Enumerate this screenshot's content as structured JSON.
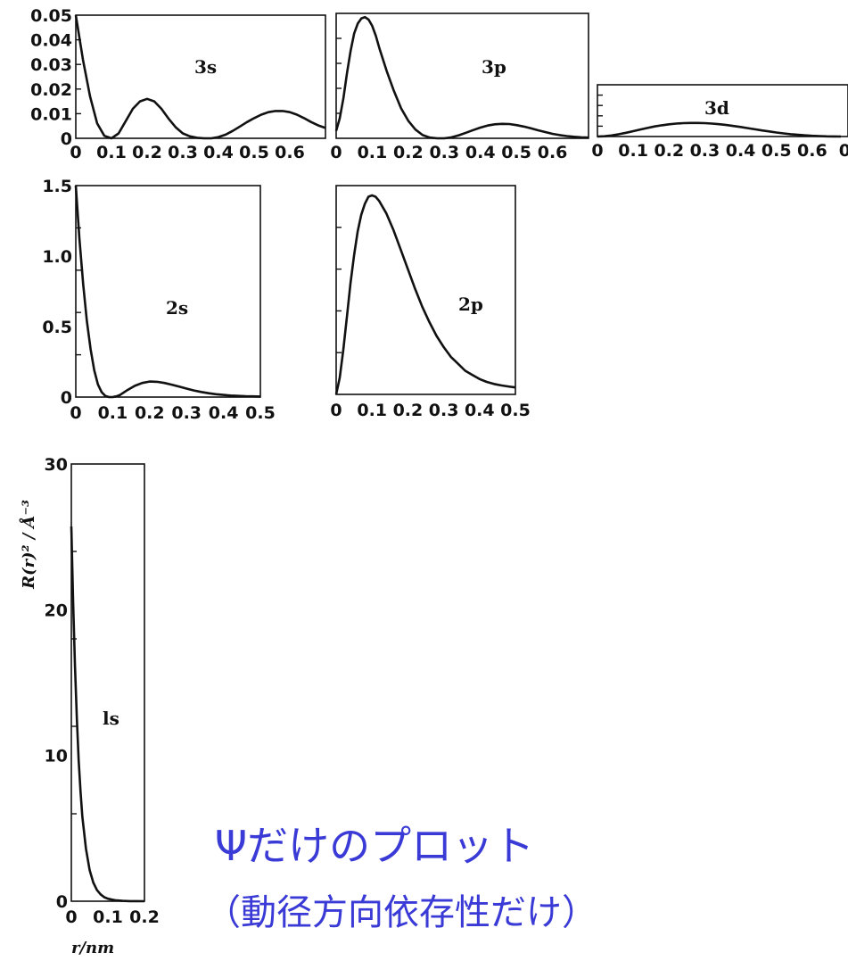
{
  "caption": {
    "main": "Ψだけのプロット",
    "sub": "（動径方向依存性だけ）"
  },
  "axis_titles": {
    "y": "R(r)² / Å⁻³",
    "x": "r/nm"
  },
  "colors": {
    "curve": "#111111",
    "caption": "#3a3ad6"
  },
  "chart_data": [
    {
      "id": "3s",
      "type": "line",
      "label": "3s",
      "xlim": [
        0,
        0.7
      ],
      "ylim": [
        0,
        0.05
      ],
      "xticks": [
        "0",
        "0.1",
        "0.2",
        "0.3",
        "0.4",
        "0.5",
        "0.6"
      ],
      "yticks": [
        "0",
        "0.01",
        "0.02",
        "0.03",
        "0.04",
        "0.05"
      ],
      "x": [
        0,
        0.02,
        0.04,
        0.06,
        0.08,
        0.1,
        0.12,
        0.14,
        0.16,
        0.18,
        0.2,
        0.22,
        0.24,
        0.26,
        0.28,
        0.3,
        0.32,
        0.34,
        0.36,
        0.38,
        0.4,
        0.42,
        0.44,
        0.46,
        0.48,
        0.5,
        0.52,
        0.54,
        0.56,
        0.58,
        0.6,
        0.62,
        0.64,
        0.66,
        0.68,
        0.7
      ],
      "y": [
        0.05,
        0.032,
        0.017,
        0.006,
        0.001,
        0.0,
        0.002,
        0.007,
        0.012,
        0.015,
        0.016,
        0.015,
        0.012,
        0.008,
        0.0045,
        0.002,
        0.0008,
        0.0002,
        0.0,
        0.0,
        0.0005,
        0.0015,
        0.003,
        0.0048,
        0.0066,
        0.0082,
        0.0096,
        0.0106,
        0.0111,
        0.0111,
        0.0106,
        0.0096,
        0.0082,
        0.0066,
        0.0052,
        0.0042
      ]
    },
    {
      "id": "3p",
      "type": "line",
      "label": "3p",
      "xlim": [
        0,
        0.7
      ],
      "ylim": [
        0,
        0.05
      ],
      "xticks": [
        "0",
        "0.1",
        "0.2",
        "0.3",
        "0.4",
        "0.5",
        "0.6"
      ],
      "yticks": [],
      "x": [
        0,
        0.01,
        0.02,
        0.03,
        0.04,
        0.05,
        0.06,
        0.07,
        0.08,
        0.09,
        0.1,
        0.11,
        0.12,
        0.14,
        0.16,
        0.18,
        0.2,
        0.22,
        0.24,
        0.26,
        0.28,
        0.3,
        0.32,
        0.34,
        0.36,
        0.38,
        0.4,
        0.42,
        0.44,
        0.46,
        0.48,
        0.5,
        0.52,
        0.54,
        0.56,
        0.58,
        0.6,
        0.62,
        0.64,
        0.66,
        0.68,
        0.7
      ],
      "y": [
        0.003,
        0.008,
        0.016,
        0.026,
        0.035,
        0.042,
        0.046,
        0.048,
        0.0485,
        0.0475,
        0.045,
        0.041,
        0.036,
        0.027,
        0.019,
        0.012,
        0.007,
        0.0035,
        0.0013,
        0.0003,
        0.0,
        0.0,
        0.0004,
        0.0012,
        0.0022,
        0.0033,
        0.0043,
        0.0051,
        0.0056,
        0.0058,
        0.0057,
        0.0053,
        0.0047,
        0.004,
        0.0032,
        0.0025,
        0.0018,
        0.0013,
        0.0009,
        0.0006,
        0.0004,
        0.0003
      ]
    },
    {
      "id": "3d",
      "type": "line",
      "label": "3d",
      "xlim": [
        0,
        0.7
      ],
      "ylim": [
        0,
        0.05
      ],
      "xticks": [
        "0",
        "0.1",
        "0.2",
        "0.3",
        "0.4",
        "0.5",
        "0.6",
        "0."
      ],
      "yticks": [],
      "x": [
        0,
        0.02,
        0.04,
        0.06,
        0.08,
        0.1,
        0.12,
        0.14,
        0.16,
        0.18,
        0.2,
        0.22,
        0.24,
        0.26,
        0.28,
        0.3,
        0.32,
        0.34,
        0.36,
        0.38,
        0.4,
        0.42,
        0.44,
        0.46,
        0.48,
        0.5,
        0.52,
        0.54,
        0.56,
        0.58,
        0.6,
        0.62,
        0.64,
        0.66,
        0.68
      ],
      "y": [
        0.0,
        0.0003,
        0.001,
        0.0022,
        0.0036,
        0.0052,
        0.0068,
        0.0083,
        0.0097,
        0.0109,
        0.0118,
        0.0125,
        0.0129,
        0.0131,
        0.0131,
        0.0129,
        0.0125,
        0.0119,
        0.0111,
        0.0102,
        0.0092,
        0.0081,
        0.007,
        0.0059,
        0.0049,
        0.0039,
        0.003,
        0.0022,
        0.0016,
        0.0011,
        0.0007,
        0.0004,
        0.0002,
        0.0001,
        0.0
      ]
    },
    {
      "id": "2s",
      "type": "line",
      "label": "2s",
      "xlim": [
        0,
        0.5
      ],
      "ylim": [
        0,
        1.5
      ],
      "xticks": [
        "0",
        "0.1",
        "0.2",
        "0.3",
        "0.4",
        "0.5"
      ],
      "yticks": [
        "0",
        "0.5",
        "1.0",
        "1.5"
      ],
      "x": [
        0,
        0.01,
        0.02,
        0.03,
        0.04,
        0.05,
        0.06,
        0.07,
        0.08,
        0.09,
        0.1,
        0.11,
        0.12,
        0.14,
        0.16,
        0.18,
        0.2,
        0.22,
        0.24,
        0.26,
        0.28,
        0.3,
        0.32,
        0.34,
        0.36,
        0.38,
        0.4,
        0.42,
        0.44,
        0.46,
        0.48,
        0.5
      ],
      "y": [
        1.5,
        1.12,
        0.8,
        0.54,
        0.34,
        0.19,
        0.09,
        0.035,
        0.008,
        0.0,
        0.0,
        0.005,
        0.015,
        0.05,
        0.08,
        0.1,
        0.11,
        0.108,
        0.1,
        0.088,
        0.074,
        0.06,
        0.047,
        0.036,
        0.027,
        0.02,
        0.015,
        0.011,
        0.008,
        0.006,
        0.005,
        0.004
      ]
    },
    {
      "id": "2p",
      "type": "line",
      "label": "2p",
      "xlim": [
        0,
        0.5
      ],
      "ylim": [
        0,
        1.5
      ],
      "xticks": [
        "0",
        "0.1",
        "0.2",
        "0.3",
        "0.4",
        "0.5"
      ],
      "yticks": [],
      "x": [
        0,
        0.01,
        0.02,
        0.03,
        0.04,
        0.05,
        0.06,
        0.07,
        0.08,
        0.09,
        0.1,
        0.11,
        0.12,
        0.14,
        0.16,
        0.18,
        0.2,
        0.22,
        0.24,
        0.26,
        0.28,
        0.3,
        0.32,
        0.34,
        0.36,
        0.38,
        0.4,
        0.42,
        0.44,
        0.46,
        0.48,
        0.5
      ],
      "y": [
        0.0,
        0.12,
        0.32,
        0.56,
        0.8,
        1.0,
        1.17,
        1.29,
        1.37,
        1.42,
        1.43,
        1.42,
        1.39,
        1.3,
        1.18,
        1.04,
        0.9,
        0.76,
        0.63,
        0.52,
        0.42,
        0.34,
        0.27,
        0.22,
        0.17,
        0.14,
        0.11,
        0.09,
        0.075,
        0.065,
        0.057,
        0.05
      ]
    },
    {
      "id": "1s",
      "type": "line",
      "label": "ls",
      "xlim": [
        0,
        0.2
      ],
      "ylim": [
        0,
        35
      ],
      "xticks": [
        "0",
        "0.1",
        "0.2"
      ],
      "yticks": [
        "0",
        "10",
        "20",
        "30"
      ],
      "x": [
        0,
        0.005,
        0.01,
        0.015,
        0.02,
        0.025,
        0.03,
        0.04,
        0.05,
        0.06,
        0.07,
        0.08,
        0.09,
        0.1,
        0.12,
        0.14,
        0.16,
        0.18,
        0.2
      ],
      "y": [
        30,
        24,
        18.8,
        14.6,
        11.3,
        8.8,
        6.8,
        4.2,
        2.5,
        1.5,
        0.9,
        0.55,
        0.32,
        0.2,
        0.08,
        0.03,
        0.01,
        0.004,
        0.0
      ]
    }
  ]
}
